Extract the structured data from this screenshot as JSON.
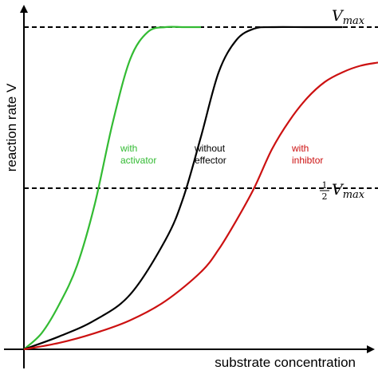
{
  "chart_data": {
    "type": "line",
    "title": "",
    "xlabel": "substrate concentration",
    "ylabel": "reaction rate V",
    "xlim": [
      0,
      10
    ],
    "ylim": [
      0,
      1.0
    ],
    "grid": false,
    "reference_lines": [
      {
        "y": 1.0,
        "label_main": "V",
        "label_sub": "max",
        "style": "dashed"
      },
      {
        "y": 0.5,
        "label_prefix_num": "1",
        "label_prefix_den": "2",
        "label_main": "V",
        "label_sub": "max",
        "style": "dashed"
      }
    ],
    "series": [
      {
        "name": "with activator",
        "label_lines": [
          "with",
          "activator"
        ],
        "color": "#33bb33",
        "x": [
          0,
          0.5,
          1.0,
          1.5,
          2.0,
          2.5,
          3.0,
          3.5,
          4.0,
          4.5,
          5.0
        ],
        "y": [
          0,
          0.05,
          0.14,
          0.26,
          0.45,
          0.7,
          0.9,
          0.985,
          1.0,
          1.0,
          1.0
        ]
      },
      {
        "name": "without effector",
        "label_lines": [
          "without",
          "effector"
        ],
        "color": "#000000",
        "x": [
          0,
          1.0,
          2.0,
          3.0,
          4.0,
          4.5,
          5.0,
          5.5,
          6.0,
          6.5,
          7.0,
          8.0,
          9.0
        ],
        "y": [
          0,
          0.04,
          0.09,
          0.17,
          0.34,
          0.47,
          0.66,
          0.86,
          0.96,
          0.995,
          1.0,
          1.0,
          1.0
        ]
      },
      {
        "name": "with inhibitor",
        "label_lines": [
          "with",
          "inhibtor"
        ],
        "color": "#cc1111",
        "x": [
          0,
          1.0,
          2.0,
          3.0,
          4.0,
          5.0,
          5.5,
          6.0,
          6.5,
          7.0,
          7.5,
          8.0,
          8.5,
          9.0,
          9.5,
          10.0
        ],
        "y": [
          0,
          0.02,
          0.05,
          0.09,
          0.15,
          0.24,
          0.31,
          0.4,
          0.5,
          0.62,
          0.71,
          0.78,
          0.83,
          0.86,
          0.88,
          0.89
        ]
      }
    ]
  }
}
